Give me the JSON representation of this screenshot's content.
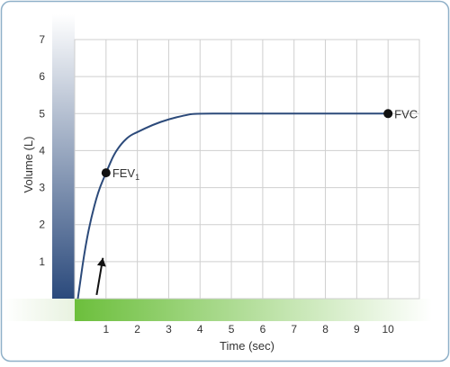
{
  "chart_data": {
    "type": "line",
    "xlabel": "Time (sec)",
    "ylabel": "Volume (L)",
    "xlim": [
      0,
      11
    ],
    "ylim": [
      0,
      7
    ],
    "x_ticks": [
      "1",
      "2",
      "3",
      "4",
      "5",
      "6",
      "7",
      "8",
      "9",
      "10"
    ],
    "y_ticks": [
      "1",
      "2",
      "3",
      "4",
      "5",
      "6",
      "7"
    ],
    "grid": true,
    "series": [
      {
        "color": "#2c4a7a",
        "points": [
          [
            0.1,
            0.0
          ],
          [
            0.3,
            1.2
          ],
          [
            0.5,
            2.1
          ],
          [
            0.75,
            2.9
          ],
          [
            1.0,
            3.4
          ],
          [
            1.25,
            3.9
          ],
          [
            1.5,
            4.2
          ],
          [
            1.75,
            4.4
          ],
          [
            2.0,
            4.5
          ],
          [
            2.5,
            4.7
          ],
          [
            3.0,
            4.85
          ],
          [
            3.5,
            4.95
          ],
          [
            3.8,
            5.0
          ],
          [
            5.0,
            5.0
          ],
          [
            7.0,
            5.0
          ],
          [
            10.0,
            5.0
          ]
        ]
      }
    ],
    "markers": [
      {
        "label_main": "FEV",
        "label_sub": "1",
        "x": 1.0,
        "y": 3.4
      },
      {
        "label_main": "FVC",
        "label_sub": "",
        "x": 10.0,
        "y": 5.0
      }
    ],
    "arrow": {
      "from": [
        0.7,
        0.1
      ],
      "to": [
        0.9,
        1.1
      ]
    },
    "colors": {
      "line": "#2c4a7a",
      "grid": "#cfcfcf",
      "frame": "#8fb0c8",
      "y_band_top": "#ffffff",
      "y_band_bottom": "#2b4a7c",
      "x_band_left": "#6cbf3c",
      "x_band_right": "#ffffff"
    }
  }
}
